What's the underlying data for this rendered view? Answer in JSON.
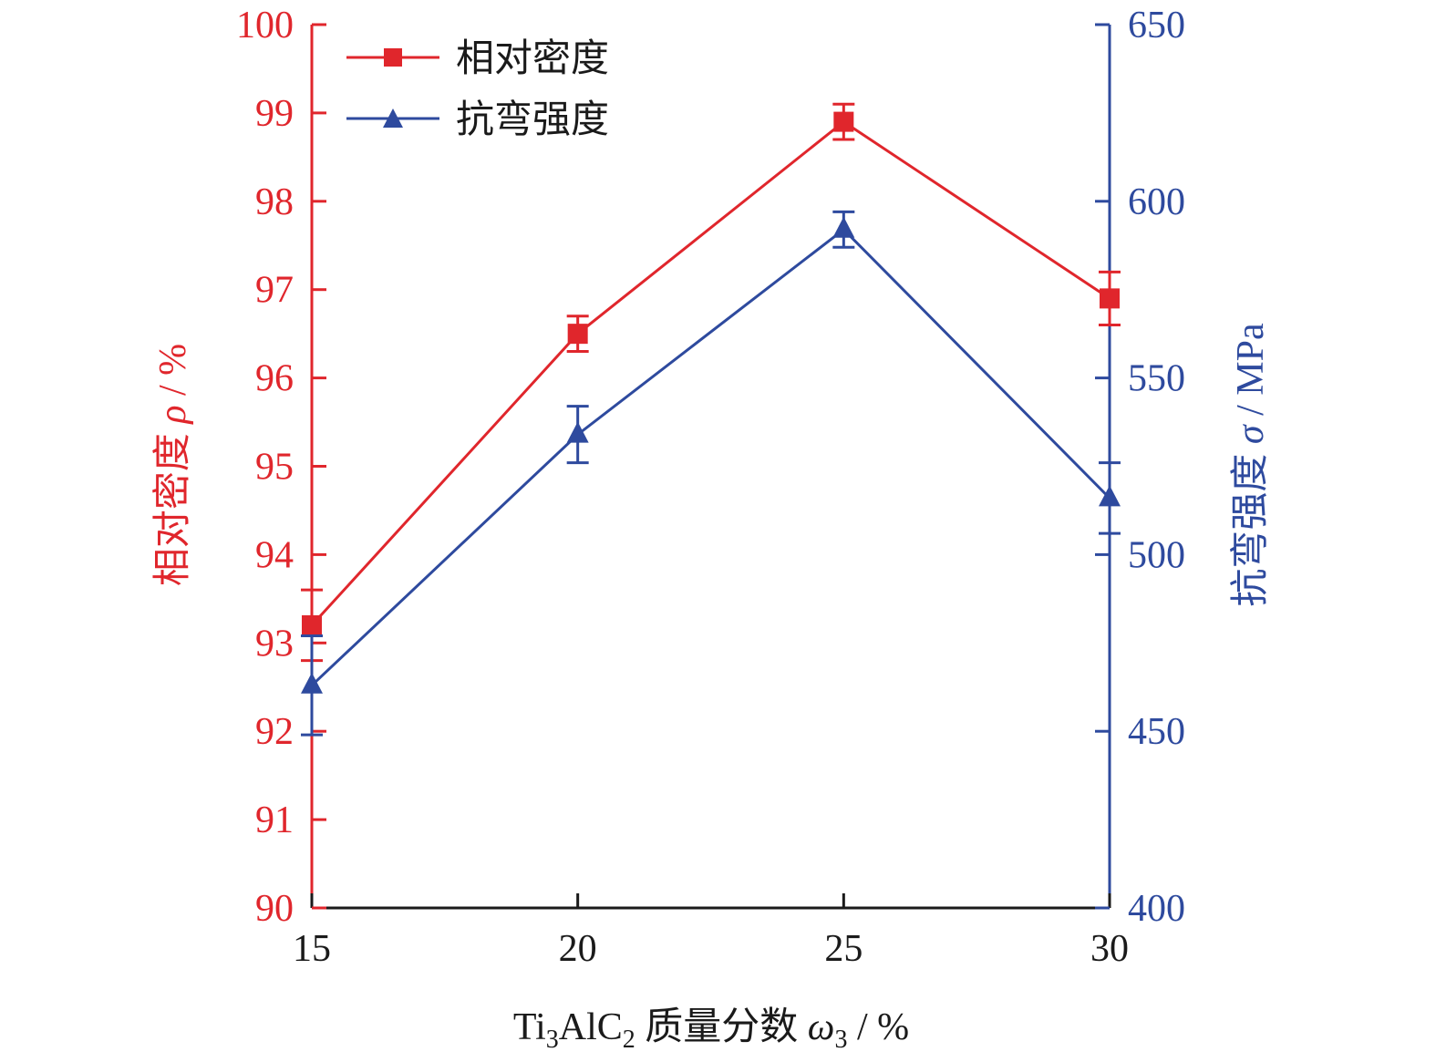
{
  "colors": {
    "density": "#e0262c",
    "strength": "#2e4a9e",
    "axis_x": "#1a1a1a"
  },
  "legend": {
    "density_label": "相对密度",
    "strength_label": "抗弯强度"
  },
  "axes": {
    "x_title_prefix": "Ti",
    "x_title_sub1": "3",
    "x_title_mid": "AlC",
    "x_title_sub2": "2",
    "x_title_cn": " 质量分数 ",
    "x_title_var": "ω",
    "x_title_sub3": "3",
    "x_title_unit": " / %",
    "y_left_title_cn": "相对密度 ",
    "y_left_title_var": "ρ",
    "y_left_title_unit": " / %",
    "y_right_title_cn": "抗弯强度 ",
    "y_right_title_var": "σ",
    "y_right_title_unit": " / MPa"
  },
  "chart_data": {
    "type": "line",
    "x": [
      15,
      20,
      25,
      30
    ],
    "xticks": [
      "15",
      "20",
      "25",
      "30"
    ],
    "xlim": [
      15,
      30
    ],
    "y_left": {
      "ylim": [
        90,
        100
      ],
      "ticks": [
        "90",
        "91",
        "92",
        "93",
        "94",
        "95",
        "96",
        "97",
        "98",
        "99",
        "100"
      ]
    },
    "y_right": {
      "ylim": [
        400,
        650
      ],
      "ticks": [
        "400",
        "450",
        "500",
        "550",
        "600",
        "650"
      ]
    },
    "series": [
      {
        "name": "相对密度",
        "axis": "left",
        "marker": "square",
        "values": [
          93.2,
          96.5,
          98.9,
          96.9
        ],
        "error": [
          0.4,
          0.2,
          0.2,
          0.3
        ]
      },
      {
        "name": "抗弯强度",
        "axis": "right",
        "marker": "triangle",
        "values": [
          463,
          534,
          592,
          516
        ],
        "error": [
          14,
          8,
          5,
          10
        ]
      }
    ],
    "legend_position": "top-left",
    "grid": false
  }
}
